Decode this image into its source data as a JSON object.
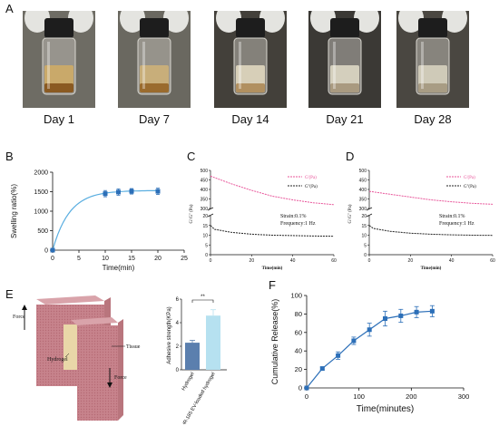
{
  "panel_letters": {
    "a": "A",
    "b": "B",
    "c": "C",
    "d": "D",
    "e": "E",
    "f": "F"
  },
  "photos": {
    "labels": [
      "Day 1",
      "Day 7",
      "Day 14",
      "Day 21",
      "Day 28"
    ],
    "backgrounds": [
      "#6e6c64",
      "#6a6860",
      "#43403a",
      "#3b3935",
      "#4a4741"
    ]
  },
  "panel_b": {
    "xlabel": "Time(min)",
    "ylabel": "Swelling ratio(%)",
    "xticks": [
      "0",
      "5",
      "10",
      "15",
      "20",
      "25"
    ],
    "yticks": [
      "0",
      "500",
      "1000",
      "1500",
      "2000"
    ]
  },
  "panel_c": {
    "ylabel": "G'/G'' (Pa)",
    "xlabel": "Time(min)",
    "legend": [
      "G'(Pa)",
      "G''(Pa)"
    ],
    "note1": "Strain:0.1%",
    "note2": "Frequency:1 Hz",
    "xticks": [
      "0",
      "20",
      "40",
      "60"
    ],
    "yticks_upper": [
      "500",
      "450",
      "400",
      "350",
      "300"
    ],
    "yticks_lower": [
      "20",
      "15",
      "10",
      "5",
      "0"
    ]
  },
  "panel_d": {
    "ylabel": "G'/G'' (Pa)",
    "xlabel": "Time(min)",
    "legend": [
      "G'(Pa)",
      "G''(Pa)"
    ],
    "note1": "Strain:0.1%",
    "note2": "Frequency:1 Hz",
    "xticks": [
      "0",
      "20",
      "40",
      "60"
    ],
    "yticks_upper": [
      "500",
      "450",
      "400",
      "350",
      "300"
    ],
    "yticks_lower": [
      "20",
      "15",
      "10",
      "5",
      "0"
    ]
  },
  "panel_e": {
    "force_top": "Force",
    "force_bottom": "Force",
    "tissue": "Tissue",
    "hydrogel": "Hydrogel",
    "ylabel": "Adhesive strength(KPa)",
    "significance": "**",
    "yticks": [
      "0",
      "2",
      "4",
      "6"
    ]
  },
  "panel_f": {
    "xlabel": "Time(minutes)",
    "ylabel": "Cumulative Release(%)",
    "xticks": [
      "0",
      "100",
      "200",
      "300"
    ],
    "yticks": [
      "0",
      "20",
      "40",
      "60",
      "80",
      "100"
    ]
  },
  "chart_data": [
    {
      "id": "B",
      "type": "scatter",
      "xlabel": "Time(min)",
      "ylabel": "Swelling ratio(%)",
      "xlim": [
        0,
        25
      ],
      "ylim": [
        0,
        2000
      ],
      "x": [
        0,
        10,
        12.5,
        15,
        20
      ],
      "y": [
        0,
        1450,
        1490,
        1510,
        1510
      ],
      "err": [
        0,
        80,
        80,
        70,
        80
      ],
      "fit": "one-phase association to plateau ~1530",
      "color": "#2c6fb8",
      "line_color": "#5aaee0"
    },
    {
      "id": "C",
      "type": "line",
      "xlabel": "Time(min)",
      "xlim": [
        0,
        60
      ],
      "series": [
        {
          "name": "G'(Pa)",
          "x": [
            0,
            10,
            20,
            30,
            40,
            50,
            60
          ],
          "values": [
            470,
            430,
            395,
            365,
            345,
            330,
            320
          ],
          "color": "#e8559a"
        },
        {
          "name": "G''(Pa)",
          "x": [
            0,
            2,
            10,
            20,
            30,
            40,
            50,
            60
          ],
          "values": [
            15,
            13,
            11.5,
            10.5,
            10,
            9.8,
            9.6,
            9.5
          ],
          "color": "#222222"
        }
      ]
    },
    {
      "id": "D",
      "type": "line",
      "xlabel": "Time(min)",
      "xlim": [
        0,
        60
      ],
      "series": [
        {
          "name": "G'(Pa)",
          "x": [
            0,
            10,
            20,
            30,
            40,
            50,
            60
          ],
          "values": [
            390,
            375,
            360,
            345,
            335,
            327,
            322
          ],
          "color": "#e8559a"
        },
        {
          "name": "G''(Pa)",
          "x": [
            0,
            2,
            10,
            20,
            30,
            40,
            50,
            60
          ],
          "values": [
            15,
            13.5,
            12,
            11,
            10.5,
            10.2,
            10,
            9.9
          ],
          "color": "#222222"
        }
      ]
    },
    {
      "id": "E",
      "type": "bar",
      "ylabel": "Adhesive strength(KPa)",
      "ylim": [
        0,
        6
      ],
      "categories": [
        "Hydrogel",
        "miR-185 EV-loaded hydrogel"
      ],
      "values": [
        2.3,
        4.6
      ],
      "err": [
        0.2,
        0.5
      ],
      "colors": [
        "#5b7fae",
        "#b6e1f0"
      ]
    },
    {
      "id": "F",
      "type": "line",
      "xlabel": "Time(minutes)",
      "ylabel": "Cumulative Release(%)",
      "xlim": [
        0,
        300
      ],
      "ylim": [
        0,
        100
      ],
      "x": [
        0,
        30,
        60,
        90,
        120,
        150,
        180,
        210,
        240
      ],
      "y": [
        0,
        21,
        35,
        51,
        63,
        75,
        78,
        82,
        83
      ],
      "err": [
        0,
        1.5,
        4,
        4,
        7,
        8,
        7,
        6,
        6
      ],
      "color": "#2c6fb8"
    }
  ]
}
